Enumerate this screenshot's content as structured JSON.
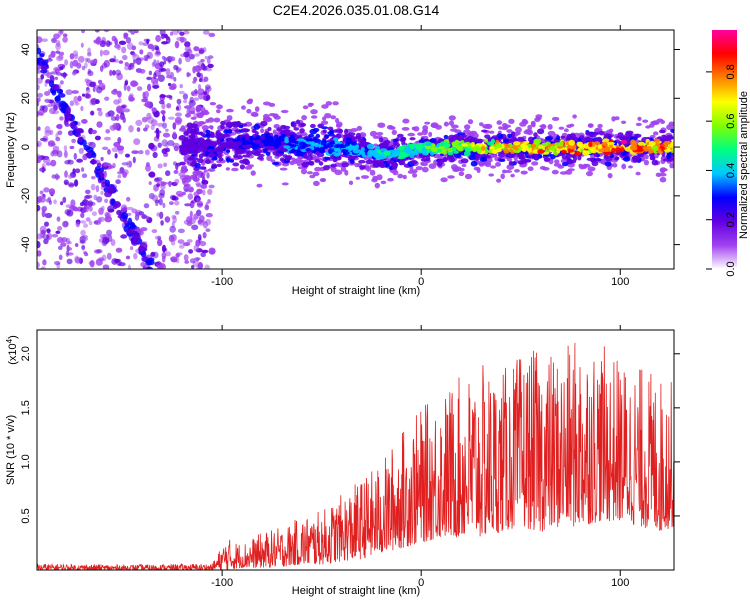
{
  "title": "C2E4.2026.035.01.08.G14",
  "chart_data": [
    {
      "type": "heatmap",
      "title": "C2E4.2026.035.01.08.G14",
      "xlabel": "Height of straight line (km)",
      "ylabel": "Frequency (Hz)",
      "xlim": [
        -193,
        127
      ],
      "ylim": [
        -50,
        48
      ],
      "xticks": [
        -100,
        0,
        100
      ],
      "yticks": [
        -40,
        -20,
        0,
        20,
        40
      ],
      "xtick_labels": [
        "-100",
        "0",
        "100"
      ],
      "ytick_labels": [
        "-40",
        "-20",
        "0",
        "20",
        "40"
      ],
      "grid": false,
      "noise_region_x": [
        -193,
        -105
      ],
      "ridge": {
        "description": "main spectral ridge (frequency vs height), bright near 0 Hz",
        "x": [
          -120,
          -100,
          -80,
          -60,
          -40,
          -20,
          0,
          20,
          40,
          60,
          80,
          100,
          127
        ],
        "y": [
          0,
          1,
          2,
          1,
          0,
          -3,
          -1,
          0,
          0,
          0,
          0,
          0,
          0
        ],
        "amplitude": [
          0.2,
          0.25,
          0.3,
          0.35,
          0.4,
          0.45,
          0.5,
          0.65,
          0.75,
          0.8,
          0.85,
          0.9,
          0.8
        ]
      },
      "curved_trace": {
        "description": "decaying frequency trace in low-height region",
        "x": [
          -193,
          -185,
          -175,
          -165,
          -155,
          -145,
          -135
        ],
        "y": [
          40,
          25,
          10,
          -5,
          -20,
          -35,
          -50
        ]
      },
      "colorbar": {
        "label": "Normalized spectral amplitude",
        "range": [
          0.0,
          0.97
        ],
        "ticks": [
          0.0,
          0.2,
          0.4,
          0.6,
          0.8
        ],
        "tick_labels": [
          "0.0",
          "0.2",
          "0.4",
          "0.6",
          "0.8"
        ],
        "colors": [
          "#ffffff",
          "#a040f0",
          "#6000e0",
          "#0000ff",
          "#00c8ff",
          "#00ff80",
          "#80ff00",
          "#ffff00",
          "#ff8000",
          "#ff0000",
          "#ff00a0"
        ]
      }
    },
    {
      "type": "line",
      "xlabel": "Height of straight line (km)",
      "ylabel": "SNR (10 * v/v)",
      "y_exponent_label": "(x10",
      "y_exponent_power": "4",
      "y_exponent_close": ")",
      "xlim": [
        -193,
        127
      ],
      "ylim": [
        0,
        2.22
      ],
      "xticks": [
        -100,
        0,
        100
      ],
      "yticks": [
        0.5,
        1.0,
        1.5,
        2.0
      ],
      "xtick_labels": [
        "-100",
        "0",
        "100"
      ],
      "ytick_labels": [
        "0.5",
        "1.0",
        "1.5",
        "2.0"
      ],
      "grid": false,
      "series": [
        {
          "name": "SNR",
          "color": "#e02020",
          "envelope_x": [
            -193,
            -150,
            -105,
            -98,
            -90,
            -80,
            -70,
            -60,
            -50,
            -40,
            -30,
            -20,
            -10,
            0,
            10,
            20,
            30,
            40,
            50,
            60,
            70,
            80,
            90,
            100,
            110,
            120,
            127
          ],
          "envelope_max": [
            0.06,
            0.05,
            0.06,
            0.3,
            0.25,
            0.35,
            0.4,
            0.5,
            0.55,
            0.7,
            0.85,
            1.0,
            1.3,
            1.5,
            1.65,
            1.8,
            1.9,
            1.85,
            2.0,
            2.05,
            2.0,
            2.2,
            2.1,
            1.95,
            1.9,
            1.8,
            1.75
          ],
          "envelope_min": [
            0.0,
            0.0,
            0.0,
            0.0,
            0.02,
            0.02,
            0.03,
            0.05,
            0.05,
            0.08,
            0.1,
            0.15,
            0.2,
            0.25,
            0.3,
            0.3,
            0.3,
            0.35,
            0.4,
            0.35,
            0.4,
            0.4,
            0.45,
            0.45,
            0.4,
            0.35,
            0.4
          ]
        }
      ]
    }
  ]
}
